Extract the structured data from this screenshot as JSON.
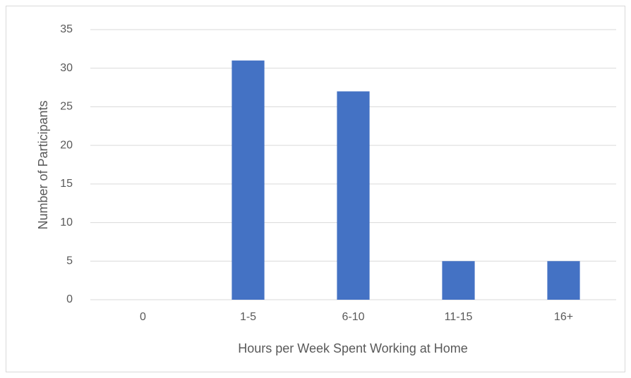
{
  "chart_data": {
    "type": "bar",
    "x_label": "Hours per Week Spent Working at Home",
    "y_label": "Number of Participants",
    "categories": [
      "0",
      "1-5",
      "6-10",
      "11-15",
      "16+"
    ],
    "values": [
      0,
      31,
      27,
      5,
      5
    ],
    "color": "#4472c4",
    "ylim": [
      0,
      35
    ],
    "yticks": [
      0,
      5,
      10,
      15,
      20,
      25,
      30,
      35
    ],
    "grid": true
  }
}
